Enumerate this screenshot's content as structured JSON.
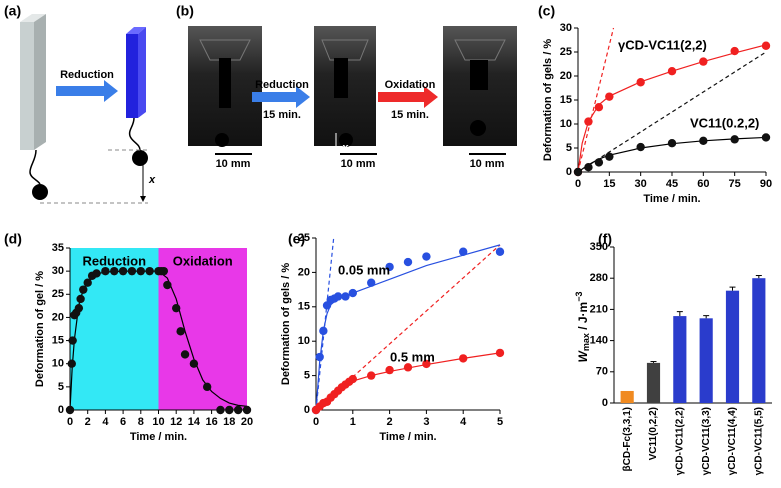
{
  "panel_labels": [
    "(a)",
    "(b)",
    "(c)",
    "(d)",
    "(e)",
    "(f)"
  ],
  "panel_a": {
    "arrow_label": "Reduction",
    "distance_label": "x"
  },
  "panel_b": {
    "arrow1_label": "Reduction",
    "arrow1_time": "15 min.",
    "arrow2_label": "Oxidation",
    "arrow2_time": "15 min.",
    "scale_bars": [
      "10 mm",
      "10 mm",
      "10 mm"
    ],
    "distance_label": "x"
  },
  "chart_data": [
    {
      "type": "scatter",
      "x_label": "Time / min.",
      "y_label": "Deformation of gels / %",
      "xlim": [
        0,
        90
      ],
      "ylim": [
        0,
        30
      ],
      "xticks": [
        0,
        15,
        30,
        45,
        60,
        75,
        90
      ],
      "yticks": [
        0,
        5,
        10,
        15,
        20,
        25,
        30
      ],
      "series": [
        {
          "name": "γCD-VC11(2,2)",
          "color": "#f02020",
          "x": [
            0,
            5,
            10,
            15,
            30,
            45,
            60,
            75,
            90
          ],
          "values": [
            0,
            10.5,
            13.5,
            15.7,
            18.7,
            21,
            23,
            25.2,
            26.3
          ],
          "fit": {
            "x": [
              0,
              2,
              5,
              10,
              15,
              30,
              45,
              60,
              75,
              90
            ],
            "values": [
              0,
              6,
              10.5,
              14,
              15.8,
              18.8,
              21,
              23,
              24.8,
              26.5
            ]
          }
        },
        {
          "name": "VC11(0.2,2)",
          "color": "#111111",
          "x": [
            0,
            5,
            10,
            15,
            30,
            45,
            60,
            75,
            90
          ],
          "values": [
            0,
            1,
            2,
            3.2,
            5.2,
            6,
            6.5,
            6.8,
            7.2
          ],
          "fit": {
            "x": [
              0,
              5,
              10,
              15,
              30,
              45,
              60,
              75,
              90
            ],
            "values": [
              0,
              1.5,
              2.7,
              3.5,
              5,
              5.9,
              6.5,
              6.9,
              7.2
            ]
          }
        }
      ],
      "reference_lines": [
        {
          "color": "#f02020",
          "x": [
            0,
            17
          ],
          "values": [
            0,
            30
          ]
        },
        {
          "color": "#111111",
          "x": [
            0,
            90
          ],
          "values": [
            0,
            25
          ]
        }
      ]
    },
    {
      "type": "scatter",
      "x_label": "Time / min.",
      "y_label": "Deformation of gel / %",
      "xlim": [
        0,
        20
      ],
      "ylim": [
        0,
        35
      ],
      "xticks": [
        0,
        2,
        4,
        6,
        8,
        10,
        12,
        14,
        16,
        18,
        20
      ],
      "yticks": [
        0,
        5,
        10,
        15,
        20,
        25,
        30,
        35
      ],
      "regions": [
        {
          "label": "Reduction",
          "color": "#33e8f5",
          "x": [
            0,
            10
          ]
        },
        {
          "label": "Oxidation",
          "color": "#e838e8",
          "x": [
            10,
            20
          ]
        }
      ],
      "series": [
        {
          "color": "#111111",
          "x": [
            0,
            0.2,
            0.3,
            0.5,
            0.7,
            1,
            1.2,
            1.5,
            2,
            2.5,
            3,
            4,
            5,
            6,
            7,
            8,
            9,
            10,
            10.3,
            10.6,
            11,
            12,
            12.5,
            13,
            14,
            15.5,
            17,
            18,
            19,
            20
          ],
          "values": [
            0,
            10,
            15,
            20.5,
            21,
            22,
            24,
            26,
            27.5,
            29,
            29.5,
            30,
            30,
            30,
            30,
            30,
            30,
            30,
            30,
            30,
            27,
            22,
            17,
            12,
            10,
            5,
            0,
            0,
            0,
            0
          ],
          "fit": {
            "x": [
              0,
              0.25,
              0.5,
              1,
              1.5,
              2,
              3,
              4,
              6,
              8,
              10,
              11,
              12,
              13,
              14,
              15,
              16,
              17,
              18,
              19,
              20
            ],
            "values": [
              0,
              9.2,
              15.3,
              22.7,
              26,
              27.6,
              29.4,
              29.8,
              30,
              30,
              30,
              28.5,
              24,
              17,
              11,
              6.5,
              4,
              2.5,
              1.5,
              1,
              0.8
            ]
          }
        }
      ]
    },
    {
      "type": "scatter",
      "x_label": "Time / min.",
      "y_label": "Deformation of gels / %",
      "xlim": [
        0,
        5
      ],
      "ylim": [
        0,
        25
      ],
      "xticks": [
        0,
        1,
        2,
        3,
        4,
        5
      ],
      "yticks": [
        0,
        5,
        10,
        15,
        20,
        25
      ],
      "series": [
        {
          "name": "0.05 mm",
          "color": "#2850e0",
          "x": [
            0,
            0.1,
            0.2,
            0.3,
            0.4,
            0.5,
            0.6,
            0.8,
            1,
            1.5,
            2,
            2.5,
            3,
            4,
            5
          ],
          "values": [
            0,
            7.7,
            11.5,
            15.2,
            16,
            16.2,
            16.5,
            16.5,
            17,
            18.5,
            20.8,
            21.5,
            22.3,
            23,
            23
          ],
          "fit": {
            "x": [
              0,
              0.1,
              0.2,
              0.3,
              0.4,
              0.6,
              1,
              1.5,
              2,
              3,
              4,
              5
            ],
            "values": [
              0,
              7,
              11.5,
              14,
              15.3,
              16.2,
              17,
              18,
              19,
              21,
              22.5,
              24
            ]
          }
        },
        {
          "name": "0.5 mm",
          "color": "#f02020",
          "x": [
            0,
            0.1,
            0.2,
            0.3,
            0.4,
            0.5,
            0.6,
            0.7,
            0.8,
            0.9,
            1,
            1.5,
            2,
            2.5,
            3,
            4,
            5
          ],
          "values": [
            0,
            0.5,
            1,
            1.2,
            1.8,
            2.3,
            2.8,
            3.3,
            3.7,
            4.1,
            4.5,
            5,
            5.8,
            6.2,
            6.7,
            7.5,
            8.3
          ],
          "fit": {
            "x": [
              0,
              0.5,
              1,
              1.5,
              2,
              3,
              4,
              5
            ],
            "values": [
              0,
              2.5,
              4.2,
              5,
              5.6,
              6.6,
              7.5,
              8.3
            ]
          }
        }
      ],
      "reference_lines": [
        {
          "color": "#2850e0",
          "x": [
            0,
            0.48
          ],
          "values": [
            0,
            25
          ]
        },
        {
          "color": "#f02020",
          "x": [
            0,
            5
          ],
          "values": [
            0,
            24
          ]
        }
      ]
    },
    {
      "type": "bar",
      "y_label": {
        "main": "W",
        "sub": "max",
        "rest": " / J·m",
        "sup": "−3"
      },
      "categories": [
        "βCD-Fc(3,3,1)",
        "VC11(0,2,2)",
        "γCD-VC11(2,2)",
        "γCD-VC11(3,3)",
        "γCD-VC11(4,4)",
        "γCD-VC11(5,5)"
      ],
      "values": [
        27,
        90,
        195,
        190,
        252,
        280
      ],
      "errors": [
        0,
        3,
        10,
        6,
        8,
        6
      ],
      "colors": [
        "#f08a20",
        "#404040",
        "#2a3ccc",
        "#2a3ccc",
        "#2a3ccc",
        "#2a3ccc"
      ],
      "ylim": [
        0,
        350
      ],
      "yticks": [
        0,
        70,
        140,
        210,
        280,
        350
      ]
    }
  ]
}
